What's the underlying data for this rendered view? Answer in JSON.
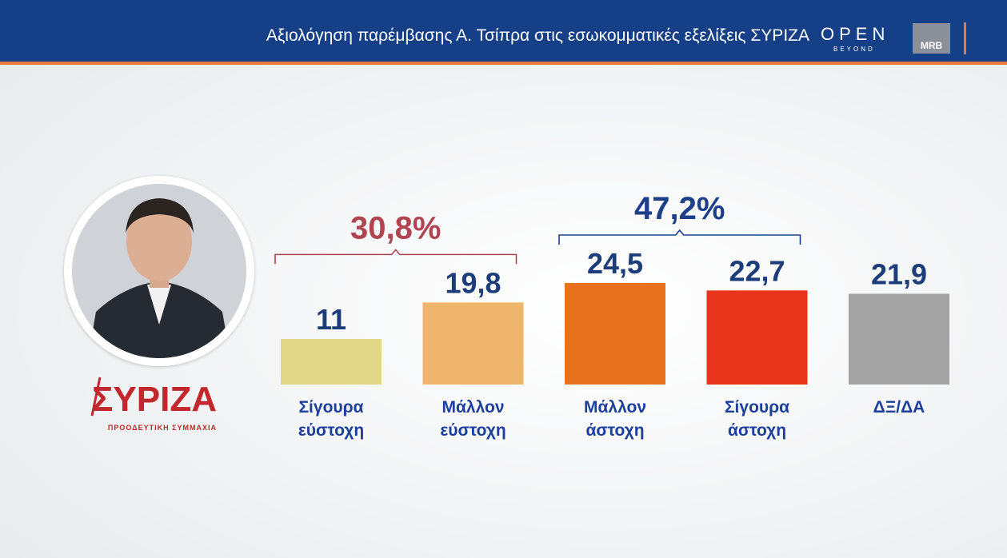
{
  "header": {
    "title": "Αξιολόγηση παρέμβασης  Α. Τσίπρα στις εσωκομματικές εξελίξεις ΣΥΡΙΖΑ",
    "broadcaster_logo": "OPEN",
    "broadcaster_tagline": "BEYOND",
    "pollster_logo": "MRB"
  },
  "party": {
    "logo_text": "ΣΥΡΙΖΑ",
    "subtitle": "ΠΡΟΟΔΕΥΤΙΚΗ ΣΥΜΜΑΧΙΑ"
  },
  "colors": {
    "header_bg": "#153f86",
    "accent_stripe": "#e8793d",
    "value_text": "#1c3d7a",
    "category_text": "#1d3f9c",
    "group_positive": "#b04552",
    "group_negative": "#1d3f8a"
  },
  "chart_data": {
    "type": "bar",
    "categories": [
      [
        "Σίγουρα",
        "εύστοχη"
      ],
      [
        "Μάλλον",
        "εύστοχη"
      ],
      [
        "Μάλλον",
        "άστοχη"
      ],
      [
        "Σίγουρα",
        "άστοχη"
      ],
      [
        "ΔΞ/ΔΑ"
      ]
    ],
    "values": [
      11,
      19.8,
      24.5,
      22.7,
      21.9
    ],
    "value_labels": [
      "11",
      "19,8",
      "24,5",
      "22,7",
      "21,9"
    ],
    "bar_colors": [
      "#e0d888",
      "#f0b56c",
      "#e8731e",
      "#e8341a",
      "#a3a3a3"
    ],
    "ylim": [
      0,
      24.5
    ],
    "groups": [
      {
        "label": "30,8%",
        "from": 0,
        "to": 1,
        "color": "#b04552"
      },
      {
        "label": "47,2%",
        "from": 2,
        "to": 3,
        "color": "#1d3f8a"
      }
    ]
  }
}
